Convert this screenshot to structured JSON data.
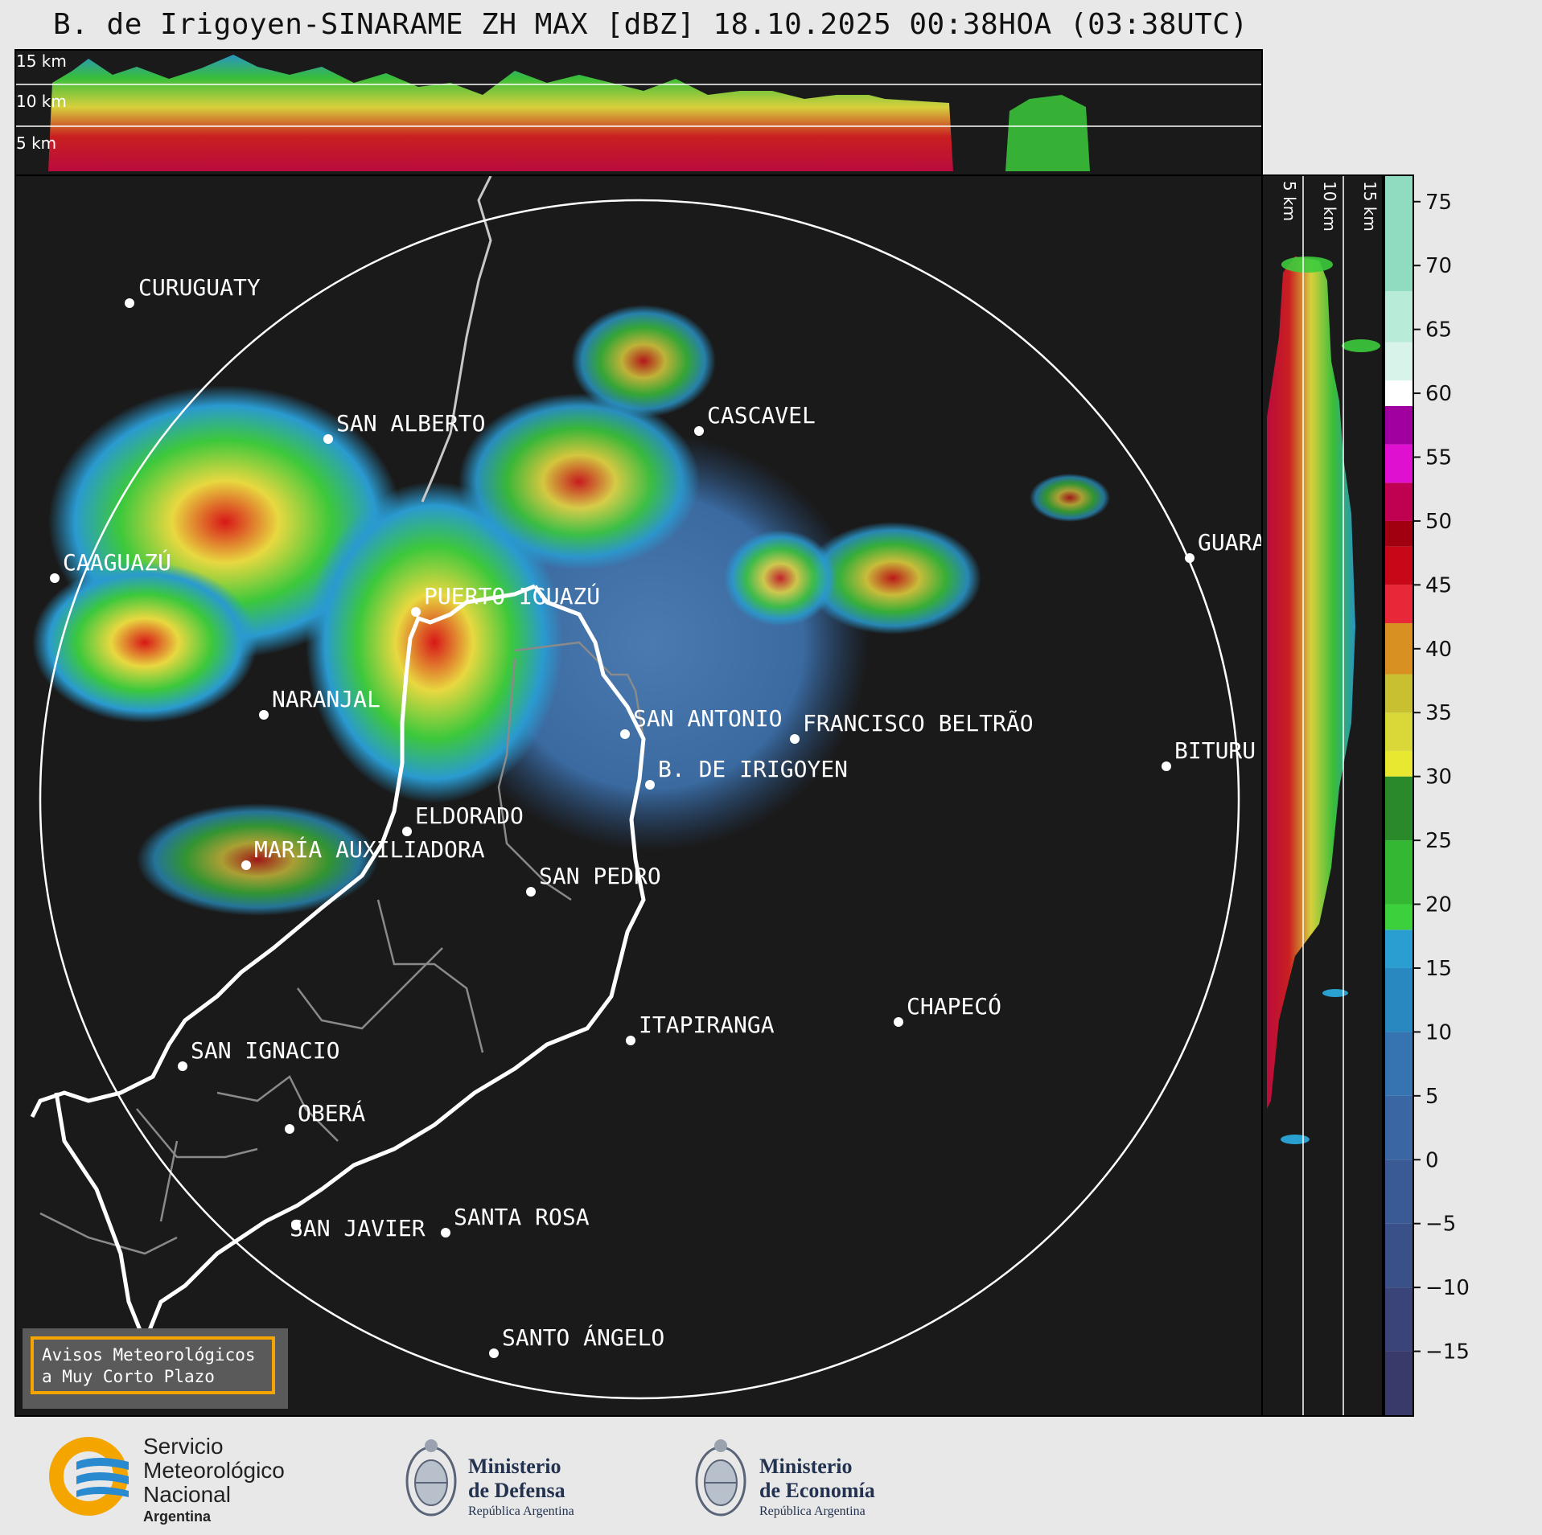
{
  "title": "B. de Irigoyen-SINARAME ZH MAX [dBZ] 18.10.2025 00:38HOA (03:38UTC)",
  "top_panel": {
    "height_labels": [
      "15 km",
      "10 km",
      "5 km"
    ]
  },
  "side_panel": {
    "height_labels": [
      "5 km",
      "10 km",
      "15 km"
    ]
  },
  "cities": [
    {
      "name": "CURUGUATY"
    },
    {
      "name": "SAN ALBERTO"
    },
    {
      "name": "CASCAVEL"
    },
    {
      "name": "CAAGUAZÚ"
    },
    {
      "name": "PUERTO IGUAZÚ"
    },
    {
      "name": "GUARA"
    },
    {
      "name": "NARANJAL"
    },
    {
      "name": "SAN ANTONIO"
    },
    {
      "name": "FRANCISCO BELTRÃO"
    },
    {
      "name": "B. DE IRIGOYEN"
    },
    {
      "name": "BITURU"
    },
    {
      "name": "ELDORADO"
    },
    {
      "name": "MARÍA AUXILIADORA"
    },
    {
      "name": "SAN PEDRO"
    },
    {
      "name": "CHAPECÓ"
    },
    {
      "name": "ITAPIRANGA"
    },
    {
      "name": "SAN IGNACIO"
    },
    {
      "name": "OBERÁ"
    },
    {
      "name": "SAN JAVIER"
    },
    {
      "name": "SANTA ROSA"
    },
    {
      "name": "SANTO ÁNGELO"
    }
  ],
  "colorbar": {
    "ticks": [
      "75",
      "70",
      "65",
      "60",
      "55",
      "50",
      "45",
      "40",
      "35",
      "30",
      "25",
      "20",
      "15",
      "10",
      "5",
      "0",
      "−5",
      "−10",
      "−15"
    ],
    "range": [
      -20,
      77
    ]
  },
  "warning_box": {
    "line1": "Avisos Meteorológicos",
    "line2": "a Muy Corto Plazo"
  },
  "footer": {
    "smn": {
      "line1": "Servicio",
      "line2": "Meteorológico",
      "line3": "Nacional",
      "line4": "Argentina"
    },
    "defensa": {
      "line1": "Ministerio",
      "line2": "de Defensa",
      "line3": "República Argentina"
    },
    "economia": {
      "line1": "Ministerio",
      "line2": "de Economía",
      "line3": "República Argentina"
    }
  },
  "colors": {
    "background": "#1a1a1a",
    "range_ring": "#ffffff",
    "warning_border": "#f5a500"
  }
}
